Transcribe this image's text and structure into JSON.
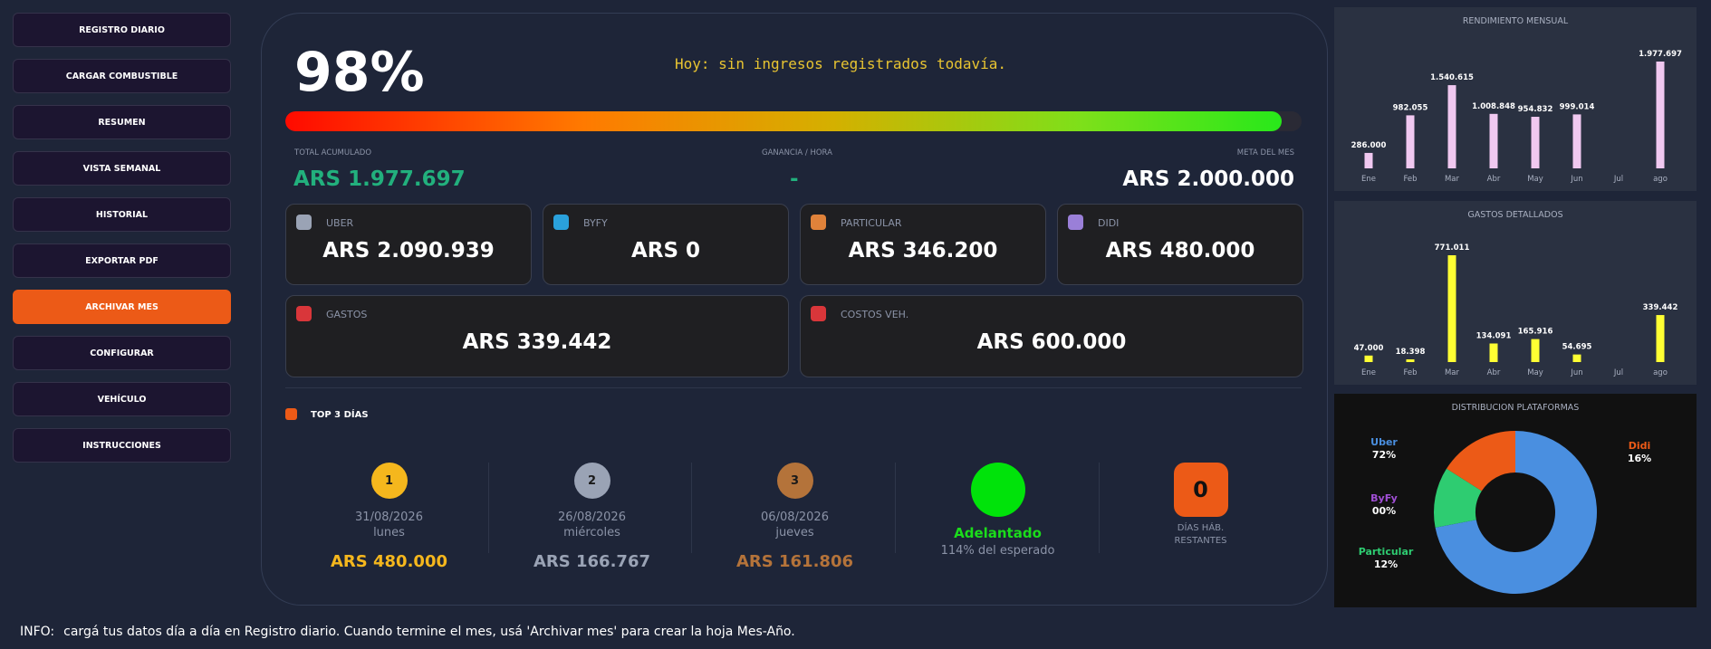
{
  "sidebar": {
    "items": [
      {
        "label": "REGISTRO DIARIO",
        "active": false
      },
      {
        "label": "CARGAR COMBUSTIBLE",
        "active": false
      },
      {
        "label": "RESUMEN",
        "active": false
      },
      {
        "label": "VISTA SEMANAL",
        "active": false
      },
      {
        "label": "HISTORIAL",
        "active": false
      },
      {
        "label": "EXPORTAR PDF",
        "active": false
      },
      {
        "label": "ARCHIVAR MES",
        "active": true
      },
      {
        "label": "CONFIGURAR",
        "active": false
      },
      {
        "label": "VEHÍCULO",
        "active": false
      },
      {
        "label": "INSTRUCCIONES",
        "active": false
      }
    ]
  },
  "summary": {
    "percent": "98%",
    "progress": 0.98,
    "today_message": "Hoy: sin ingresos registrados todavía.",
    "total_label": "TOTAL ACUMULADO",
    "total_value": "ARS 1.977.697",
    "rate_label": "GANANCIA / HORA",
    "rate_value": "-",
    "goal_label": "META DEL MES",
    "goal_value": "ARS 2.000.000"
  },
  "platforms": [
    {
      "name": "UBER",
      "value": "ARS 2.090.939",
      "color": "#9aa3b5"
    },
    {
      "name": "BYFY",
      "value": "ARS 0",
      "color": "#2aa1dc"
    },
    {
      "name": "PARTICULAR",
      "value": "ARS 346.200",
      "color": "#e0823a"
    },
    {
      "name": "DIDI",
      "value": "ARS 480.000",
      "color": "#9a7fd8"
    }
  ],
  "costs": [
    {
      "name": "GASTOS",
      "value": "ARS 339.442",
      "color": "#d9363a"
    },
    {
      "name": "COSTOS VEH.",
      "value": "ARS 600.000",
      "color": "#d9363a"
    }
  ],
  "top3": {
    "title": "TOP 3 DÍAS",
    "days": [
      {
        "rank": "1",
        "date": "31/08/2026",
        "weekday": "lunes",
        "amount": "ARS 480.000",
        "color": "#f5b71d"
      },
      {
        "rank": "2",
        "date": "26/08/2026",
        "weekday": "miércoles",
        "amount": "ARS 166.767",
        "color": "#9aa3b5"
      },
      {
        "rank": "3",
        "date": "06/08/2026",
        "weekday": "jueves",
        "amount": "ARS 161.806",
        "color": "#b4733a"
      }
    ]
  },
  "status": {
    "label": "Adelantado",
    "sub": "114% del esperado",
    "days_value": "0",
    "days_label_1": "DÍAS HÁB.",
    "days_label_2": "RESTANTES"
  },
  "chart_data": [
    {
      "type": "bar",
      "title": "RENDIMIENTO MENSUAL",
      "categories": [
        "Ene",
        "Feb",
        "Mar",
        "Abr",
        "May",
        "Jun",
        "Jul",
        "ago"
      ],
      "values": [
        286000,
        982055,
        1540615,
        1008848,
        954832,
        999014,
        0,
        1977697
      ],
      "labels": [
        "286.000",
        "982.055",
        "1.540.615",
        "1.008.848",
        "954.832",
        "999.014",
        "",
        "1.977.697"
      ],
      "color": "#f0c8f0",
      "ylim": [
        0,
        1977697
      ]
    },
    {
      "type": "bar",
      "title": "GASTOS DETALLADOS",
      "categories": [
        "Ene",
        "Feb",
        "Mar",
        "Abr",
        "May",
        "Jun",
        "Jul",
        "ago"
      ],
      "values": [
        47000,
        18398,
        771011,
        134091,
        165916,
        54695,
        0,
        339442
      ],
      "labels": [
        "47.000",
        "18.398",
        "771.011",
        "134.091",
        "165.916",
        "54.695",
        "",
        "339.442"
      ],
      "color": "#ffff33",
      "ylim": [
        0,
        771011
      ]
    },
    {
      "type": "pie",
      "title": "DISTRIBUCION PLATAFORMAS",
      "slices": [
        {
          "name": "Uber",
          "pct_label": "72%",
          "value": 72,
          "color": "#4a8fe0"
        },
        {
          "name": "ByFy",
          "pct_label": "00%",
          "value": 0,
          "color": "#a14fd6"
        },
        {
          "name": "Particular",
          "pct_label": "12%",
          "value": 12,
          "color": "#2ecc71"
        },
        {
          "name": "Didi",
          "pct_label": "16%",
          "value": 16,
          "color": "#ec5a17"
        }
      ]
    }
  ],
  "info": {
    "prefix": "INFO:",
    "text": "cargá tus datos día a día en Registro diario. Cuando termine el mes, usá 'Archivar mes' para crear la hoja Mes-Año."
  }
}
